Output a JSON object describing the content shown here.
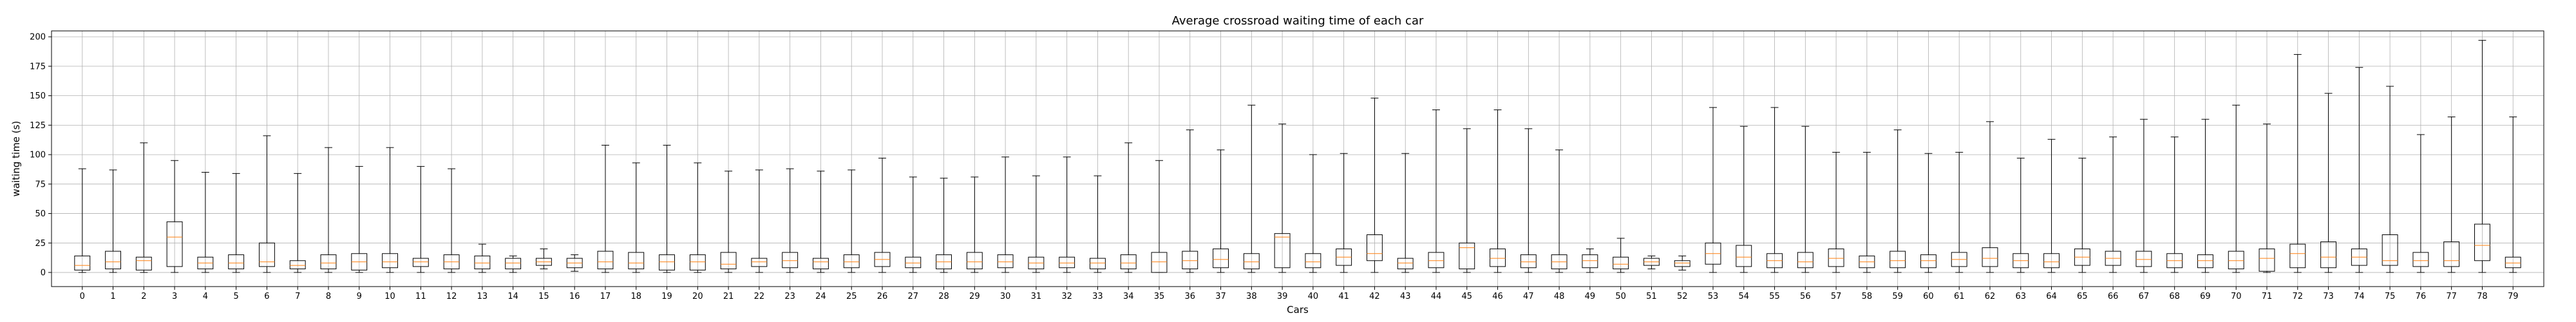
{
  "chart_data": {
    "type": "box",
    "title": "Average crossroad waiting time of each car",
    "xlabel": "Cars",
    "ylabel": "waiting time (s)",
    "ylim": [
      -12,
      205
    ],
    "yticks": [
      0,
      25,
      50,
      75,
      100,
      125,
      150,
      175,
      200
    ],
    "grid": true,
    "categories": [
      "0",
      "1",
      "2",
      "3",
      "4",
      "5",
      "6",
      "7",
      "8",
      "9",
      "10",
      "11",
      "12",
      "13",
      "14",
      "15",
      "16",
      "17",
      "18",
      "19",
      "20",
      "21",
      "22",
      "23",
      "24",
      "25",
      "26",
      "27",
      "28",
      "29",
      "30",
      "31",
      "32",
      "33",
      "34",
      "35",
      "36",
      "37",
      "38",
      "39",
      "40",
      "41",
      "42",
      "43",
      "44",
      "45",
      "46",
      "47",
      "48",
      "49",
      "50",
      "51",
      "52",
      "53",
      "54",
      "55",
      "56",
      "57",
      "58",
      "59",
      "60",
      "61",
      "62",
      "63",
      "64",
      "65",
      "66",
      "67",
      "68",
      "69",
      "70",
      "71",
      "72",
      "73",
      "74",
      "75",
      "76",
      "77",
      "78",
      "79"
    ],
    "boxes": [
      {
        "whislo": 0,
        "q1": 2,
        "med": 6,
        "q3": 14,
        "whishi": 88
      },
      {
        "whislo": 0,
        "q1": 3,
        "med": 9,
        "q3": 18,
        "whishi": 87
      },
      {
        "whislo": 0,
        "q1": 2,
        "med": 10,
        "q3": 13,
        "whishi": 110
      },
      {
        "whislo": 0,
        "q1": 5,
        "med": 30,
        "q3": 43,
        "whishi": 95
      },
      {
        "whislo": 0,
        "q1": 3,
        "med": 8,
        "q3": 13,
        "whishi": 85
      },
      {
        "whislo": 0,
        "q1": 3,
        "med": 8,
        "q3": 15,
        "whishi": 84
      },
      {
        "whislo": 0,
        "q1": 5,
        "med": 9,
        "q3": 25,
        "whishi": 116
      },
      {
        "whislo": 0,
        "q1": 3,
        "med": 6,
        "q3": 10,
        "whishi": 84
      },
      {
        "whislo": 0,
        "q1": 3,
        "med": 8,
        "q3": 15,
        "whishi": 106
      },
      {
        "whislo": 0,
        "q1": 2,
        "med": 9,
        "q3": 16,
        "whishi": 90
      },
      {
        "whislo": 0,
        "q1": 4,
        "med": 9,
        "q3": 16,
        "whishi": 106
      },
      {
        "whislo": 0,
        "q1": 5,
        "med": 9,
        "q3": 12,
        "whishi": 90
      },
      {
        "whislo": 0,
        "q1": 3,
        "med": 9,
        "q3": 15,
        "whishi": 88
      },
      {
        "whislo": 0,
        "q1": 3,
        "med": 8,
        "q3": 14,
        "whishi": 24
      },
      {
        "whislo": 0,
        "q1": 3,
        "med": 8,
        "q3": 12,
        "whishi": 14
      },
      {
        "whislo": 3,
        "q1": 6,
        "med": 9,
        "q3": 12,
        "whishi": 20
      },
      {
        "whislo": 1,
        "q1": 4,
        "med": 8,
        "q3": 12,
        "whishi": 15
      },
      {
        "whislo": 0,
        "q1": 3,
        "med": 9,
        "q3": 18,
        "whishi": 108
      },
      {
        "whislo": 0,
        "q1": 3,
        "med": 8,
        "q3": 17,
        "whishi": 93
      },
      {
        "whislo": 0,
        "q1": 2,
        "med": 9,
        "q3": 15,
        "whishi": 108
      },
      {
        "whislo": 0,
        "q1": 2,
        "med": 9,
        "q3": 15,
        "whishi": 93
      },
      {
        "whislo": 0,
        "q1": 3,
        "med": 7,
        "q3": 17,
        "whishi": 86
      },
      {
        "whislo": 0,
        "q1": 5,
        "med": 9,
        "q3": 12,
        "whishi": 87
      },
      {
        "whislo": 0,
        "q1": 4,
        "med": 10,
        "q3": 17,
        "whishi": 88
      },
      {
        "whislo": 0,
        "q1": 3,
        "med": 9,
        "q3": 12,
        "whishi": 86
      },
      {
        "whislo": 0,
        "q1": 4,
        "med": 9,
        "q3": 15,
        "whishi": 87
      },
      {
        "whislo": 0,
        "q1": 5,
        "med": 11,
        "q3": 17,
        "whishi": 97
      },
      {
        "whislo": 0,
        "q1": 4,
        "med": 8,
        "q3": 13,
        "whishi": 81
      },
      {
        "whislo": 0,
        "q1": 3,
        "med": 9,
        "q3": 15,
        "whishi": 80
      },
      {
        "whislo": 0,
        "q1": 3,
        "med": 9,
        "q3": 17,
        "whishi": 81
      },
      {
        "whislo": 0,
        "q1": 4,
        "med": 9,
        "q3": 15,
        "whishi": 98
      },
      {
        "whislo": 0,
        "q1": 3,
        "med": 8,
        "q3": 13,
        "whishi": 82
      },
      {
        "whislo": 0,
        "q1": 4,
        "med": 8,
        "q3": 13,
        "whishi": 98
      },
      {
        "whislo": 0,
        "q1": 3,
        "med": 8,
        "q3": 12,
        "whishi": 82
      },
      {
        "whislo": 0,
        "q1": 3,
        "med": 8,
        "q3": 15,
        "whishi": 110
      },
      {
        "whislo": 0,
        "q1": 0,
        "med": 9,
        "q3": 17,
        "whishi": 95
      },
      {
        "whislo": 0,
        "q1": 3,
        "med": 10,
        "q3": 18,
        "whishi": 121
      },
      {
        "whislo": 0,
        "q1": 4,
        "med": 11,
        "q3": 20,
        "whishi": 104
      },
      {
        "whislo": 0,
        "q1": 3,
        "med": 9,
        "q3": 16,
        "whishi": 142
      },
      {
        "whislo": 0,
        "q1": 4,
        "med": 30,
        "q3": 33,
        "whishi": 126
      },
      {
        "whislo": 0,
        "q1": 4,
        "med": 9,
        "q3": 16,
        "whishi": 100
      },
      {
        "whislo": 0,
        "q1": 6,
        "med": 13,
        "q3": 20,
        "whishi": 101
      },
      {
        "whislo": 0,
        "q1": 10,
        "med": 16,
        "q3": 32,
        "whishi": 148
      },
      {
        "whislo": 0,
        "q1": 3,
        "med": 8,
        "q3": 12,
        "whishi": 101
      },
      {
        "whislo": 0,
        "q1": 4,
        "med": 10,
        "q3": 17,
        "whishi": 138
      },
      {
        "whislo": 0,
        "q1": 3,
        "med": 21,
        "q3": 25,
        "whishi": 122
      },
      {
        "whislo": 0,
        "q1": 5,
        "med": 12,
        "q3": 20,
        "whishi": 138
      },
      {
        "whislo": 0,
        "q1": 4,
        "med": 9,
        "q3": 15,
        "whishi": 122
      },
      {
        "whislo": 0,
        "q1": 3,
        "med": 9,
        "q3": 15,
        "whishi": 104
      },
      {
        "whislo": 0,
        "q1": 4,
        "med": 10,
        "q3": 15,
        "whishi": 20
      },
      {
        "whislo": 0,
        "q1": 3,
        "med": 7,
        "q3": 13,
        "whishi": 29
      },
      {
        "whislo": 3,
        "q1": 6,
        "med": 9,
        "q3": 12,
        "whishi": 14
      },
      {
        "whislo": 2,
        "q1": 5,
        "med": 8,
        "q3": 10,
        "whishi": 14
      },
      {
        "whislo": 0,
        "q1": 7,
        "med": 16,
        "q3": 25,
        "whishi": 140
      },
      {
        "whislo": 0,
        "q1": 5,
        "med": 13,
        "q3": 23,
        "whishi": 124
      },
      {
        "whislo": 0,
        "q1": 4,
        "med": 10,
        "q3": 16,
        "whishi": 140
      },
      {
        "whislo": 0,
        "q1": 4,
        "med": 9,
        "q3": 17,
        "whishi": 124
      },
      {
        "whislo": 0,
        "q1": 5,
        "med": 12,
        "q3": 20,
        "whishi": 102
      },
      {
        "whislo": 0,
        "q1": 4,
        "med": 9,
        "q3": 14,
        "whishi": 102
      },
      {
        "whislo": 0,
        "q1": 4,
        "med": 10,
        "q3": 18,
        "whishi": 121
      },
      {
        "whislo": 0,
        "q1": 4,
        "med": 10,
        "q3": 15,
        "whishi": 101
      },
      {
        "whislo": 0,
        "q1": 5,
        "med": 11,
        "q3": 17,
        "whishi": 102
      },
      {
        "whislo": 0,
        "q1": 5,
        "med": 12,
        "q3": 21,
        "whishi": 128
      },
      {
        "whislo": 0,
        "q1": 4,
        "med": 10,
        "q3": 16,
        "whishi": 97
      },
      {
        "whislo": 0,
        "q1": 4,
        "med": 9,
        "q3": 16,
        "whishi": 113
      },
      {
        "whislo": 0,
        "q1": 6,
        "med": 13,
        "q3": 20,
        "whishi": 97
      },
      {
        "whislo": 0,
        "q1": 6,
        "med": 12,
        "q3": 18,
        "whishi": 115
      },
      {
        "whislo": 0,
        "q1": 5,
        "med": 11,
        "q3": 18,
        "whishi": 130
      },
      {
        "whislo": 0,
        "q1": 4,
        "med": 10,
        "q3": 16,
        "whishi": 115
      },
      {
        "whislo": 0,
        "q1": 4,
        "med": 10,
        "q3": 15,
        "whishi": 130
      },
      {
        "whislo": 0,
        "q1": 3,
        "med": 10,
        "q3": 18,
        "whishi": 142
      },
      {
        "whislo": 0,
        "q1": 1,
        "med": 12,
        "q3": 20,
        "whishi": 126
      },
      {
        "whislo": 0,
        "q1": 4,
        "med": 16,
        "q3": 24,
        "whishi": 185
      },
      {
        "whislo": 0,
        "q1": 4,
        "med": 13,
        "q3": 26,
        "whishi": 152
      },
      {
        "whislo": 0,
        "q1": 6,
        "med": 13,
        "q3": 20,
        "whishi": 174
      },
      {
        "whislo": 0,
        "q1": 6,
        "med": 10,
        "q3": 32,
        "whishi": 158
      },
      {
        "whislo": 0,
        "q1": 5,
        "med": 10,
        "q3": 17,
        "whishi": 117
      },
      {
        "whislo": 0,
        "q1": 5,
        "med": 10,
        "q3": 26,
        "whishi": 132
      },
      {
        "whislo": 0,
        "q1": 10,
        "med": 23,
        "q3": 41,
        "whishi": 197
      },
      {
        "whislo": 0,
        "q1": 4,
        "med": 8,
        "q3": 13,
        "whishi": 132
      }
    ],
    "colors": {
      "box": "#000000",
      "median": "#ff7f0e",
      "grid": "#b0b0b0"
    }
  }
}
